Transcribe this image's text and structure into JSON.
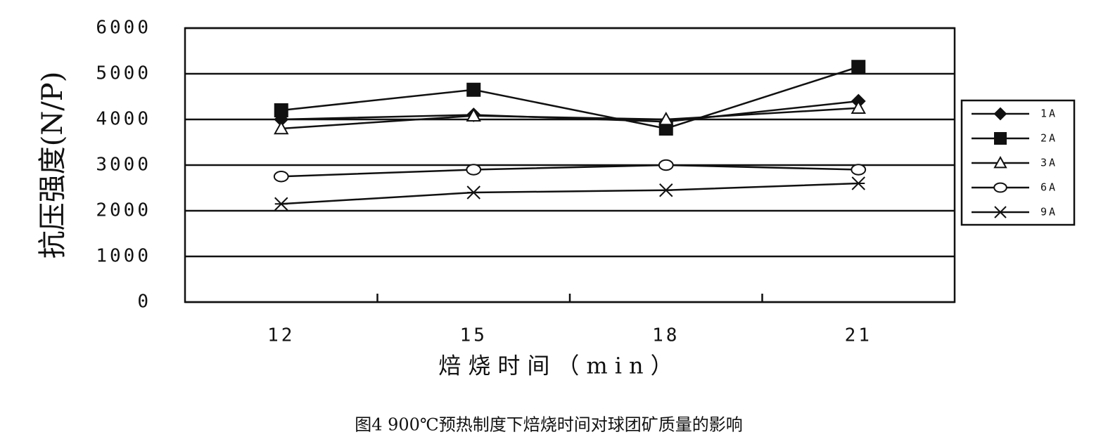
{
  "chart_data": {
    "type": "line",
    "caption": "图4  900℃预热制度下焙烧时间对球团矿质量的影响",
    "x_label": "焙烧时间（min）",
    "y_label": "抗压强度(N/P)",
    "categories": [
      "12",
      "15",
      "18",
      "21"
    ],
    "series": [
      {
        "name": "1A",
        "color": "#111111",
        "marker": "diamond",
        "values": [
          4000,
          4100,
          3950,
          4400
        ]
      },
      {
        "name": "2A",
        "color": "#111111",
        "marker": "square",
        "values": [
          4200,
          4650,
          3800,
          5150
        ]
      },
      {
        "name": "3A",
        "color": "#111111",
        "marker": "triangle",
        "values": [
          3800,
          4080,
          4000,
          4250
        ]
      },
      {
        "name": "6A",
        "color": "#111111",
        "marker": "circle",
        "values": [
          2750,
          2900,
          3000,
          2900
        ]
      },
      {
        "name": "9A",
        "color": "#111111",
        "marker": "star",
        "values": [
          2150,
          2400,
          2450,
          2600
        ]
      }
    ],
    "ylim": [
      0,
      6000
    ],
    "yticks": [
      0,
      1000,
      2000,
      3000,
      4000,
      5000,
      6000
    ],
    "grid": true,
    "legend": "right"
  }
}
